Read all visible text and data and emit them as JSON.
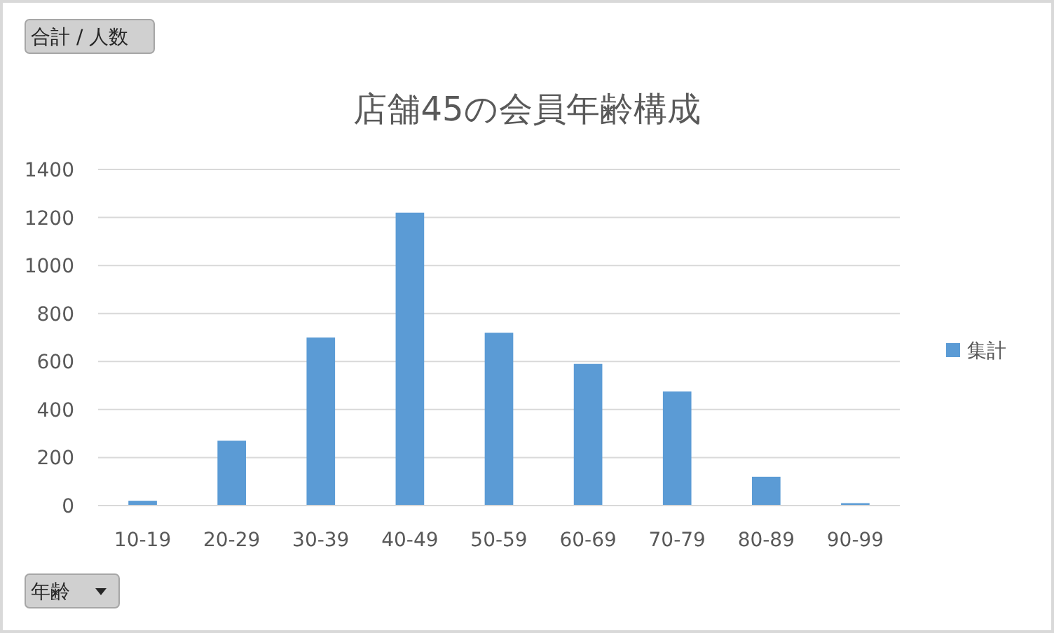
{
  "chart_data": {
    "type": "bar",
    "title": "店舗45の会員年齢構成",
    "categories": [
      "10-19",
      "20-29",
      "30-39",
      "40-49",
      "50-59",
      "60-69",
      "70-79",
      "80-89",
      "90-99"
    ],
    "series": [
      {
        "name": "集計",
        "color": "#5b9bd5",
        "values": [
          20,
          270,
          700,
          1220,
          720,
          590,
          475,
          120,
          10
        ]
      }
    ],
    "ylim": [
      0,
      1400
    ],
    "yticks": [
      0,
      200,
      400,
      600,
      800,
      1000,
      1200,
      1400
    ],
    "grid": "y",
    "legend": "right",
    "annotations": [
      "合計 / 人数",
      "年齢"
    ]
  }
}
